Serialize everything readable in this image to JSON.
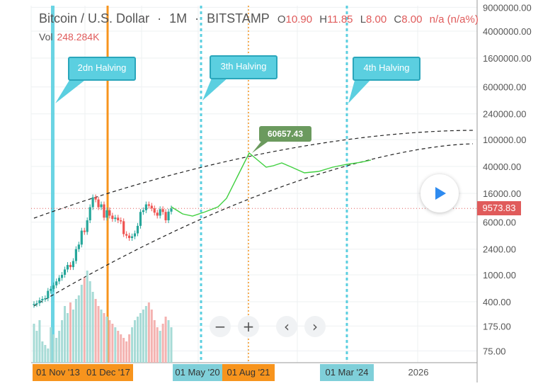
{
  "header": {
    "symbol": "Bitcoin / U.S. Dollar",
    "sep1": "·",
    "interval": "1M",
    "sep2": "·",
    "exchange": "BITSTAMP",
    "o_label": "O",
    "o_val": "10.90",
    "h_label": "H",
    "h_val": "11.85",
    "l_label": "L",
    "l_val": "8.00",
    "c_label": "C",
    "c_val": "8.00",
    "change": "n/a (n/a%)"
  },
  "volume": {
    "label": "Vol",
    "value": "248.284K"
  },
  "callouts": [
    "2dn Halving",
    "3th Halving",
    "4th Halving"
  ],
  "peak_label": "60657.43",
  "price_label": "9573.83",
  "x_tags": [
    {
      "label": "01 Nov '13",
      "color": "#f7941d"
    },
    {
      "label": "01 Dec '17",
      "color": "#f7941d"
    },
    {
      "label": "01 May '20",
      "color": "#7fcfd9"
    },
    {
      "label": "01 Aug '21",
      "color": "#f7941d"
    },
    {
      "label": "01 Mar '24",
      "color": "#7fcfd9"
    },
    {
      "label": "2026",
      "color": "none"
    }
  ],
  "controls": {
    "zoom_out": "−",
    "zoom_in": "+",
    "prev": "‹",
    "next": "›"
  },
  "colors": {
    "up": "#26a69a",
    "down": "#ef5350",
    "projection": "#40d040",
    "halving": "#5bcfe0",
    "marker": "#f7941d",
    "price_line": "#e05b5b"
  },
  "chart_data": {
    "type": "line",
    "y_scale": "log",
    "y_ticks": [
      "9000000.00",
      "4000000.00",
      "1600000.00",
      "600000.00",
      "240000.00",
      "100000.00",
      "40000.00",
      "16000.00",
      "6000.00",
      "2400.00",
      "1000.00",
      "400.00",
      "175.00",
      "75.00"
    ],
    "candles_close": [
      370,
      380,
      420,
      440,
      450,
      580,
      620,
      700,
      800,
      900,
      1000,
      1200,
      1400,
      1300,
      1600,
      2400,
      2800,
      4500,
      4300,
      6400,
      10000,
      14000,
      13000,
      10000,
      11000,
      7000,
      9000,
      7500,
      6700,
      7000,
      6400,
      6200,
      4000,
      3800,
      3500,
      3700,
      4100,
      5300,
      8500,
      9000,
      11000,
      10500,
      9600,
      8300,
      7500,
      9350,
      8500,
      6400,
      8600,
      9573.83
    ],
    "projection_line": {
      "description": "hand-drawn forecast path",
      "points": [
        [
          0.0,
          9573
        ],
        [
          0.1,
          7000
        ],
        [
          0.2,
          7500
        ],
        [
          0.3,
          10000
        ],
        [
          0.42,
          18000
        ],
        [
          0.55,
          60657
        ],
        [
          0.6,
          45000
        ],
        [
          0.65,
          42000
        ],
        [
          0.72,
          44000
        ],
        [
          0.8,
          30000
        ],
        [
          0.88,
          35000
        ],
        [
          1.0,
          55000
        ]
      ]
    },
    "peak_value": 60657.43,
    "current_price": 9573.83,
    "halvings": [
      "2dn Halving",
      "3th Halving",
      "4th Halving"
    ]
  }
}
